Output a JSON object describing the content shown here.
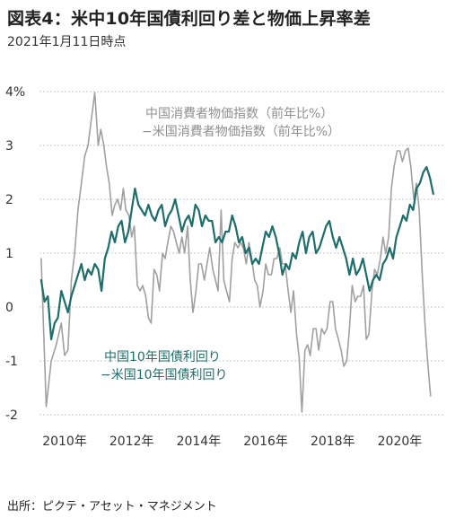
{
  "header": {
    "title": "図表4：米中10年国債利回り差と物価上昇率差",
    "subtitle": "2021年1月11日時点"
  },
  "footer": {
    "source": "出所：ピクテ・アセット・マネジメント"
  },
  "colors": {
    "cpi_diff": "#a0a0a0",
    "yield_diff": "#1e6e6b",
    "grid": "#c8c8c8"
  },
  "chart_data": {
    "type": "line",
    "title": "",
    "xlabel": "",
    "ylabel": "",
    "xlim": [
      2009.25,
      2021.3
    ],
    "ylim": [
      -2,
      4
    ],
    "x_ticks": [
      2010,
      2012,
      2014,
      2016,
      2018,
      2020
    ],
    "x_tick_labels": [
      "2010年",
      "2012年",
      "2014年",
      "2016年",
      "2018年",
      "2020年"
    ],
    "y_ticks": [
      4,
      3,
      2,
      1,
      0,
      -1,
      -2
    ],
    "y_tick_labels": [
      "4%",
      "3",
      "2",
      "1",
      "0",
      "-1",
      "-2"
    ],
    "grid": "horizontal-dashed",
    "annotations": [
      {
        "series": "cpi",
        "lines": [
          "中国消費者物価指数（前年比%）",
          "−米国消費者物価指数（前年比%）"
        ]
      },
      {
        "series": "yield",
        "lines": [
          "中国10年国債利回り",
          "−米国10年国債利回り"
        ]
      }
    ],
    "series": [
      {
        "id": "cpi",
        "x": [
          2009.3,
          2009.45,
          2009.6,
          2009.75,
          2009.9,
          2010.0,
          2010.1,
          2010.2,
          2010.3,
          2010.4,
          2010.5,
          2010.6,
          2010.7,
          2010.8,
          2010.9,
          2011.0,
          2011.08,
          2011.17,
          2011.25,
          2011.33,
          2011.42,
          2011.5,
          2011.58,
          2011.67,
          2011.75,
          2011.83,
          2011.92,
          2012.0,
          2012.08,
          2012.17,
          2012.25,
          2012.33,
          2012.42,
          2012.5,
          2012.58,
          2012.67,
          2012.75,
          2012.83,
          2012.92,
          2013.0,
          2013.08,
          2013.17,
          2013.25,
          2013.33,
          2013.42,
          2013.5,
          2013.58,
          2013.67,
          2013.75,
          2013.83,
          2013.92,
          2014.0,
          2014.08,
          2014.17,
          2014.25,
          2014.33,
          2014.42,
          2014.5,
          2014.58,
          2014.67,
          2014.75,
          2014.83,
          2014.92,
          2015.0,
          2015.08,
          2015.17,
          2015.25,
          2015.33,
          2015.42,
          2015.5,
          2015.58,
          2015.67,
          2015.75,
          2015.83,
          2015.92,
          2016.0,
          2016.08,
          2016.17,
          2016.25,
          2016.33,
          2016.42,
          2016.5,
          2016.58,
          2016.67,
          2016.75,
          2016.83,
          2016.92,
          2017.0,
          2017.08,
          2017.17,
          2017.25,
          2017.33,
          2017.42,
          2017.5,
          2017.58,
          2017.67,
          2017.75,
          2017.83,
          2017.92,
          2018.0,
          2018.08,
          2018.17,
          2018.25,
          2018.33,
          2018.42,
          2018.5,
          2018.58,
          2018.67,
          2018.75,
          2018.83,
          2018.92,
          2019.0,
          2019.08,
          2019.17,
          2019.25,
          2019.33,
          2019.42,
          2019.5,
          2019.58,
          2019.67,
          2019.75,
          2019.83,
          2019.92,
          2020.0,
          2020.08,
          2020.17,
          2020.25,
          2020.33,
          2020.42,
          2020.5,
          2020.58,
          2020.67,
          2020.75,
          2020.83,
          2020.92
        ],
        "values": [
          0.9,
          -1.85,
          -1.0,
          -0.7,
          -0.3,
          -0.9,
          -0.8,
          0.5,
          1.0,
          1.8,
          2.3,
          2.8,
          3.0,
          3.5,
          3.98,
          3.0,
          3.3,
          3.0,
          2.6,
          2.3,
          1.7,
          1.9,
          2.0,
          1.8,
          2.2,
          1.8,
          1.7,
          1.3,
          1.5,
          0.4,
          0.3,
          0.4,
          0.2,
          -0.2,
          -0.3,
          0.7,
          0.6,
          0.3,
          1.0,
          0.9,
          1.2,
          1.5,
          1.4,
          1.2,
          1.0,
          1.3,
          1.0,
          1.5,
          0.5,
          -0.1,
          0.3,
          0.8,
          0.8,
          0.5,
          0.8,
          1.1,
          0.7,
          0.5,
          0.3,
          1.8,
          0.5,
          0.3,
          0.1,
          0.9,
          1.2,
          1.1,
          1.2,
          1.1,
          0.8,
          1.2,
          0.9,
          0.5,
          0.4,
          0.0,
          0.3,
          0.8,
          0.6,
          0.6,
          0.9,
          0.9,
          1.1,
          0.8,
          0.8,
          0.3,
          -0.1,
          0.3,
          -0.5,
          -0.95,
          -1.95,
          -0.8,
          -0.7,
          -0.9,
          -0.4,
          -0.4,
          -0.8,
          -0.4,
          -0.5,
          -0.4,
          0.1,
          0.1,
          -0.4,
          -0.6,
          -0.8,
          -1.1,
          -1.0,
          -0.4,
          0.4,
          0.1,
          0.2,
          0.2,
          0.4,
          -0.6,
          -0.5,
          0.3,
          0.7,
          0.6,
          0.9,
          1.3,
          1.0,
          1.3,
          2.2,
          2.6,
          2.9,
          2.9,
          2.7,
          2.9,
          2.95,
          2.6,
          2.0,
          2.3,
          1.8,
          0.6,
          -0.3,
          -1.0,
          -1.65
        ]
      },
      {
        "id": "yield",
        "x": [
          2009.3,
          2009.4,
          2009.5,
          2009.6,
          2009.7,
          2009.8,
          2009.9,
          2010.0,
          2010.1,
          2010.2,
          2010.3,
          2010.4,
          2010.5,
          2010.6,
          2010.7,
          2010.8,
          2010.9,
          2011.0,
          2011.1,
          2011.2,
          2011.3,
          2011.4,
          2011.5,
          2011.6,
          2011.7,
          2011.8,
          2011.9,
          2012.0,
          2012.1,
          2012.2,
          2012.3,
          2012.4,
          2012.5,
          2012.6,
          2012.7,
          2012.8,
          2012.9,
          2013.0,
          2013.1,
          2013.2,
          2013.3,
          2013.4,
          2013.5,
          2013.6,
          2013.7,
          2013.8,
          2013.9,
          2014.0,
          2014.1,
          2014.2,
          2014.3,
          2014.4,
          2014.5,
          2014.6,
          2014.7,
          2014.8,
          2014.9,
          2015.0,
          2015.1,
          2015.2,
          2015.3,
          2015.4,
          2015.5,
          2015.6,
          2015.7,
          2015.8,
          2015.9,
          2016.0,
          2016.1,
          2016.2,
          2016.3,
          2016.4,
          2016.5,
          2016.6,
          2016.7,
          2016.8,
          2016.9,
          2017.0,
          2017.1,
          2017.2,
          2017.3,
          2017.4,
          2017.5,
          2017.6,
          2017.7,
          2017.8,
          2017.9,
          2018.0,
          2018.1,
          2018.2,
          2018.3,
          2018.4,
          2018.5,
          2018.6,
          2018.7,
          2018.8,
          2018.9,
          2019.0,
          2019.1,
          2019.2,
          2019.3,
          2019.4,
          2019.5,
          2019.6,
          2019.7,
          2019.8,
          2019.9,
          2020.0,
          2020.1,
          2020.2,
          2020.3,
          2020.4,
          2020.5,
          2020.6,
          2020.7,
          2020.8,
          2020.9,
          2021.0
        ],
        "values": [
          0.5,
          0.1,
          0.2,
          -0.6,
          -0.3,
          -0.2,
          0.3,
          0.1,
          -0.1,
          0.2,
          0.4,
          0.6,
          0.8,
          0.5,
          0.7,
          0.6,
          0.8,
          0.7,
          0.3,
          0.9,
          1.1,
          1.4,
          1.2,
          1.5,
          1.6,
          1.2,
          1.4,
          1.8,
          2.2,
          1.9,
          1.8,
          1.7,
          1.9,
          1.7,
          1.6,
          1.8,
          1.9,
          1.5,
          1.7,
          1.8,
          2.0,
          1.7,
          1.4,
          1.6,
          1.7,
          1.5,
          1.9,
          1.8,
          1.5,
          1.7,
          1.6,
          1.6,
          1.2,
          1.3,
          1.2,
          1.4,
          1.4,
          1.7,
          1.5,
          1.2,
          1.3,
          1.0,
          1.1,
          0.8,
          0.9,
          0.8,
          1.1,
          1.4,
          1.3,
          1.5,
          1.3,
          1.0,
          0.6,
          0.8,
          0.7,
          1.0,
          0.9,
          1.2,
          1.4,
          1.0,
          1.3,
          1.4,
          1.0,
          1.1,
          1.3,
          1.5,
          1.6,
          1.3,
          1.1,
          1.3,
          1.1,
          0.9,
          0.6,
          0.9,
          0.6,
          0.7,
          0.9,
          0.6,
          0.3,
          0.5,
          0.6,
          0.5,
          0.8,
          0.9,
          1.1,
          0.9,
          1.3,
          1.5,
          1.7,
          1.6,
          1.9,
          1.8,
          2.2,
          2.3,
          2.5,
          2.6,
          2.4,
          2.1
        ]
      }
    ]
  }
}
